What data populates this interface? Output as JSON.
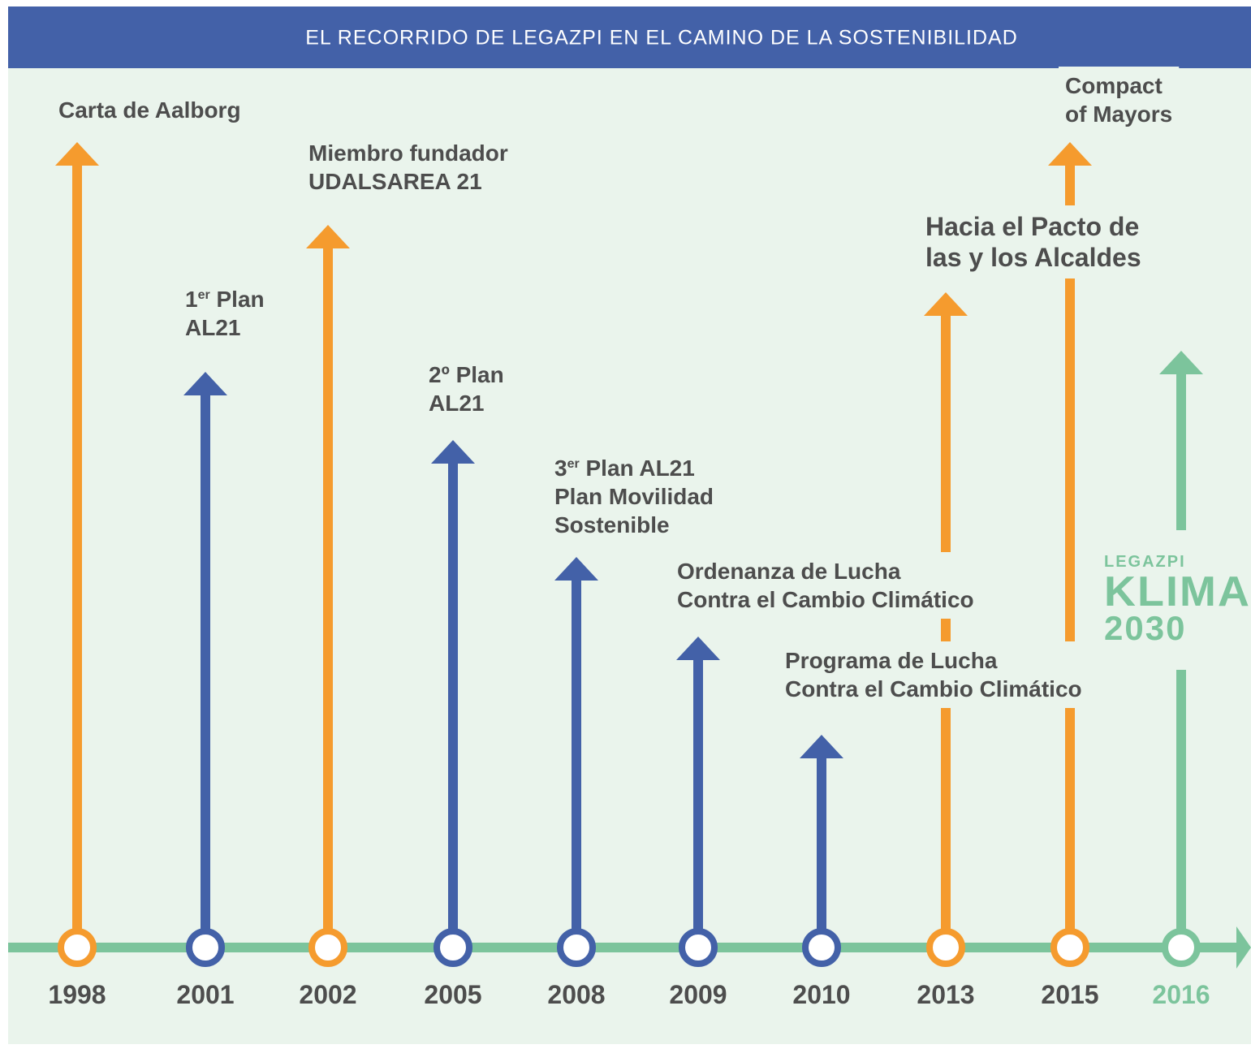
{
  "header": {
    "title": "EL RECORRIDO DE LEGAZPI EN EL CAMINO DE LA SOSTENIBILIDAD"
  },
  "events": [
    {
      "year": "1998",
      "color": "#f59b2e",
      "lines": [
        "Carta de Aalborg"
      ]
    },
    {
      "year": "2001",
      "color": "#4361a8",
      "lines": [
        {
          "base": "1",
          "sup": "er",
          "after": " Plan"
        },
        "AL21"
      ]
    },
    {
      "year": "2002",
      "color": "#f59b2e",
      "lines": [
        "Miembro fundador",
        "UDALSAREA 21"
      ]
    },
    {
      "year": "2005",
      "color": "#4361a8",
      "lines": [
        "2º Plan",
        "AL21"
      ]
    },
    {
      "year": "2008",
      "color": "#4361a8",
      "lines": [
        {
          "base": "3",
          "sup": "er",
          "after": " Plan AL21"
        },
        "Plan  Movilidad",
        "Sostenible"
      ]
    },
    {
      "year": "2009",
      "color": "#4361a8",
      "lines": [
        "Ordenanza de Lucha",
        "Contra el Cambio Climático"
      ]
    },
    {
      "year": "2010",
      "color": "#4361a8",
      "lines": [
        "Programa de Lucha",
        "Contra el Cambio Climático"
      ]
    },
    {
      "year": "2013",
      "color": "#f59b2e",
      "lines": [
        "Hacia el Pacto de",
        "las y los Alcaldes"
      ]
    },
    {
      "year": "2015",
      "color": "#f59b2e",
      "lines": [
        "Compact",
        "of Mayors"
      ]
    },
    {
      "year": "2016",
      "color": "#7cc49c",
      "highlight": true,
      "logo": [
        "LEGAZPI",
        "KLIMA",
        "2030"
      ]
    }
  ]
}
